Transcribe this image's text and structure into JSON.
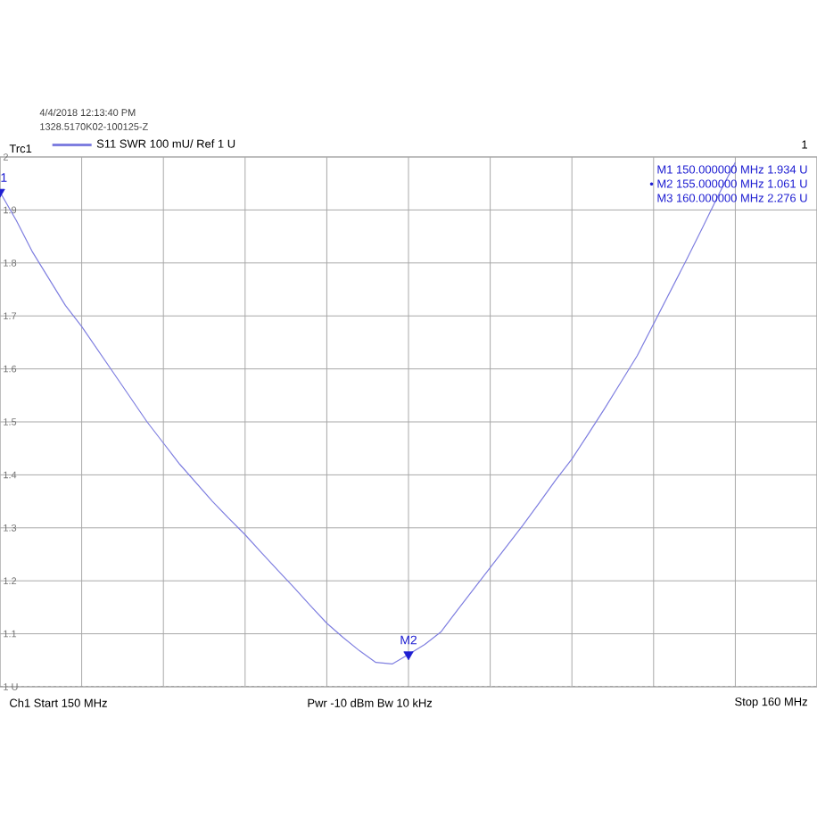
{
  "chart_data": {
    "type": "line",
    "legend_title": "Trc1",
    "categories": [
      null,
      null,
      null,
      null,
      null,
      null,
      null,
      null,
      null,
      null,
      null,
      null,
      null,
      null,
      null,
      null,
      null,
      null,
      null,
      null,
      null,
      null,
      null,
      null,
      null,
      null,
      null,
      null,
      null,
      null,
      null,
      null,
      null,
      null,
      null,
      null,
      null,
      null,
      null,
      null,
      null,
      null,
      null,
      null,
      null,
      null,
      null,
      null,
      null,
      null,
      null
    ],
    "series": [
      {
        "name": "S11 SWR 100 mU/ Ref 1 U",
        "color": "#7f7fe0",
        "values": [
          1.934,
          1.88,
          1.82,
          1.77,
          1.72,
          1.68,
          1.635,
          1.59,
          1.545,
          1.5,
          1.46,
          1.42,
          1.385,
          1.35,
          1.318,
          1.287,
          1.253,
          1.22,
          1.187,
          1.153,
          1.12,
          1.093,
          1.068,
          1.046,
          1.043,
          1.061,
          1.08,
          1.104,
          1.145,
          1.185,
          1.225,
          1.265,
          1.305,
          1.347,
          1.39,
          1.43,
          1.477,
          1.525,
          1.575,
          1.625,
          1.685,
          1.745,
          1.805,
          1.867,
          1.93,
          1.99,
          null,
          null,
          null,
          null,
          null
        ]
      },
      {
        "type": "scatter",
        "color": "#1e1ed2",
        "marker": "triangle",
        "values": [
          1.934,
          null,
          null,
          null,
          null,
          null,
          null,
          null,
          null,
          null,
          null,
          null,
          null,
          null,
          null,
          null,
          null,
          null,
          null,
          null,
          null,
          null,
          null,
          null,
          null,
          1.061,
          null,
          null,
          null,
          null,
          null,
          null,
          null,
          null,
          null,
          null,
          null,
          null,
          null,
          null,
          null,
          null,
          null,
          null,
          null,
          null,
          null,
          null,
          null,
          null,
          null
        ]
      }
    ],
    "ylim": [
      1,
      2
    ],
    "yticks": [
      {
        "value": 1,
        "label": "1 U"
      },
      1.1,
      1.2,
      1.3,
      1.4,
      1.5,
      1.6,
      1.7,
      1.8,
      1.9,
      2
    ],
    "grid": true,
    "legend": "top left",
    "ref_lines": [
      {
        "axis": "y",
        "value": 1,
        "color": "#8c8c8c",
        "line_style": "dashed"
      }
    ],
    "annotations": [
      "4/4/2018 12:13:40 PM",
      "1328.5170K02-100125-Z",
      "1",
      "M1 150.000000 MHz 1.934 U",
      "• M2 155.000000 MHz 1.061 U",
      "M3 160.000000 MHz 2.276 U",
      "Ch1 Start 150 MHz",
      "Pwr -10 dBm Bw 10 kHz",
      "Stop 160 MHz",
      {
        "text": "1",
        "y": 1.934
      },
      {
        "text": "M2",
        "y": 1.061
      }
    ]
  }
}
